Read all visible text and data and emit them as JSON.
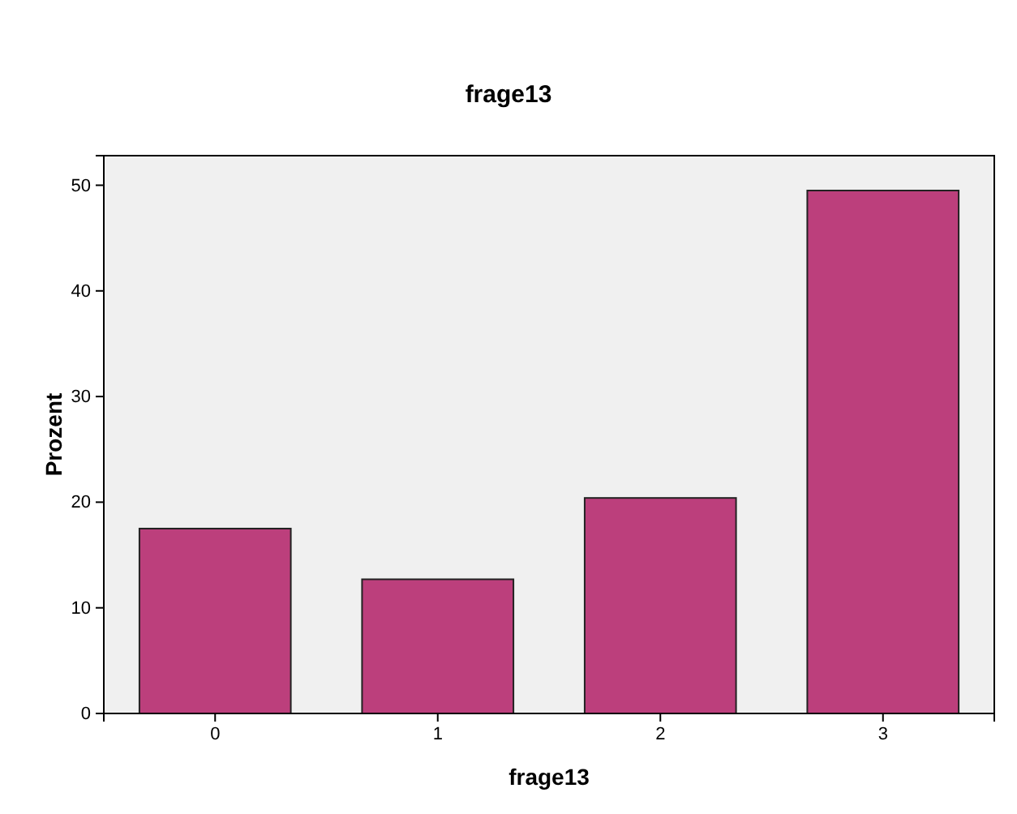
{
  "chart_data": {
    "type": "bar",
    "title": "frage13",
    "xlabel": "frage13",
    "ylabel": "Prozent",
    "categories": [
      "0",
      "1",
      "2",
      "3"
    ],
    "values": [
      17.5,
      12.7,
      20.4,
      49.5
    ],
    "color": "#bc3f7c",
    "ylim": [
      0,
      52.8
    ],
    "yticks": [
      0,
      10,
      20,
      30,
      40,
      50
    ],
    "grid": false
  }
}
